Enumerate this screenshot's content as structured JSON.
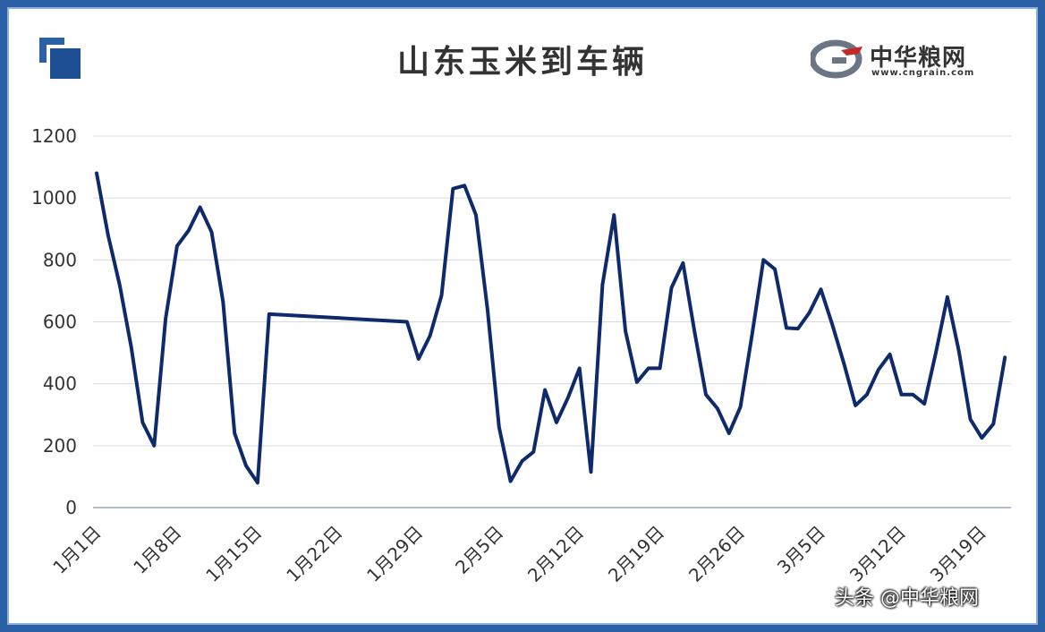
{
  "chart_data": {
    "type": "line",
    "title": "山东玉米到车辆",
    "xlabel": "",
    "ylabel": "",
    "ylim": [
      0,
      1200
    ],
    "yticks": [
      0,
      200,
      400,
      600,
      800,
      1000,
      1200
    ],
    "grid": true,
    "line_color": "#0f2a6b",
    "x_tick_labels": [
      "1月1日",
      "1月8日",
      "1月15日",
      "1月22日",
      "1月29日",
      "2月5日",
      "2月12日",
      "2月19日",
      "2月26日",
      "3月5日",
      "3月12日",
      "3月19日"
    ],
    "series": [
      {
        "x": [
          "1月1日",
          "1月2日",
          "1月3日",
          "1月4日",
          "1月5日",
          "1月6日",
          "1月7日",
          "1月8日",
          "1月9日",
          "1月10日",
          "1月11日",
          "1月12日",
          "1月13日",
          "1月14日",
          "1月15日",
          "1月16日",
          "1月28日",
          "1月29日",
          "1月30日",
          "1月31日",
          "2月1日",
          "2月2日",
          "2月3日",
          "2月4日",
          "2月5日",
          "2月6日",
          "2月7日",
          "2月8日",
          "2月9日",
          "2月10日",
          "2月11日",
          "2月12日",
          "2月13日",
          "2月14日",
          "2月15日",
          "2月16日",
          "2月17日",
          "2月18日",
          "2月19日",
          "2月20日",
          "2月21日",
          "2月22日",
          "2月23日",
          "2月24日",
          "2月25日",
          "2月26日",
          "2月27日",
          "2月28日",
          "3月1日",
          "3月2日",
          "3月3日",
          "3月4日",
          "3月5日",
          "3月6日",
          "3月7日",
          "3月8日",
          "3月9日",
          "3月10日",
          "3月11日",
          "3月12日",
          "3月13日",
          "3月14日",
          "3月15日",
          "3月16日",
          "3月17日",
          "3月18日",
          "3月19日",
          "3月20日",
          "3月21日"
        ],
        "values": [
          1080,
          880,
          720,
          520,
          275,
          200,
          610,
          845,
          895,
          970,
          890,
          665,
          240,
          135,
          80,
          625,
          600,
          480,
          555,
          685,
          1030,
          1040,
          945,
          640,
          260,
          85,
          150,
          180,
          380,
          275,
          355,
          450,
          115,
          720,
          945,
          570,
          405,
          450,
          450,
          710,
          790,
          570,
          365,
          320,
          240,
          325,
          555,
          800,
          770,
          580,
          578,
          630,
          705,
          590,
          465,
          330,
          365,
          445,
          495,
          365,
          365,
          335,
          500,
          680,
          505,
          285,
          225,
          270,
          485
        ]
      }
    ]
  },
  "header": {
    "brand_name": "中华粮网",
    "brand_url": "www.cngrain.com"
  },
  "watermark": "头条 @中华粮网"
}
